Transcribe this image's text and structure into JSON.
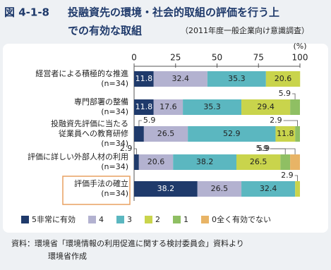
{
  "chart_data": {
    "type": "stacked-barh",
    "figure_label": "図 4-1-8",
    "title": [
      "投融資先の環境・社会的取組の評価を行う上",
      "での有効な取組"
    ],
    "subtitle": "（2011年度一般企業向け意識調査）",
    "unit": "(%)",
    "categories": [
      [
        "経営者による積極的な推進",
        "(n=34)"
      ],
      [
        "専門部署の整備",
        "(n=34)"
      ],
      [
        "投融資先評価に当たる",
        "従業員への教育研修",
        "(n=34)"
      ],
      [
        "評価に詳しい外部人材の利用",
        "(n=34)"
      ],
      [
        "評価手法の確立",
        "(n=34)"
      ]
    ],
    "series": [
      {
        "name": "5非常に有効",
        "color": "#1f3a6b",
        "values": [
          11.8,
          11.8,
          5.9,
          2.9,
          38.2
        ]
      },
      {
        "name": "4",
        "color": "#b3b2d0",
        "values": [
          32.4,
          17.6,
          26.5,
          20.6,
          26.5
        ]
      },
      {
        "name": "3",
        "color": "#5bb7c0",
        "values": [
          35.3,
          35.3,
          52.9,
          38.2,
          32.4
        ]
      },
      {
        "name": "2",
        "color": "#c9d44c",
        "values": [
          20.6,
          29.4,
          11.8,
          26.5,
          2.9
        ]
      },
      {
        "name": "1",
        "color": "#8fbf63",
        "values": [
          0,
          5.9,
          2.9,
          5.9,
          0
        ]
      },
      {
        "name": "0全く有効でない",
        "color": "#e8b466",
        "values": [
          0,
          0,
          0,
          5.9,
          0
        ]
      }
    ],
    "xlim": [
      0,
      100
    ],
    "xticks": [
      0,
      25,
      50,
      75,
      100
    ],
    "source": [
      "資料：環境省「環境情報の利用促進に関する検討委員会」資料より",
      "環境省作成"
    ]
  }
}
